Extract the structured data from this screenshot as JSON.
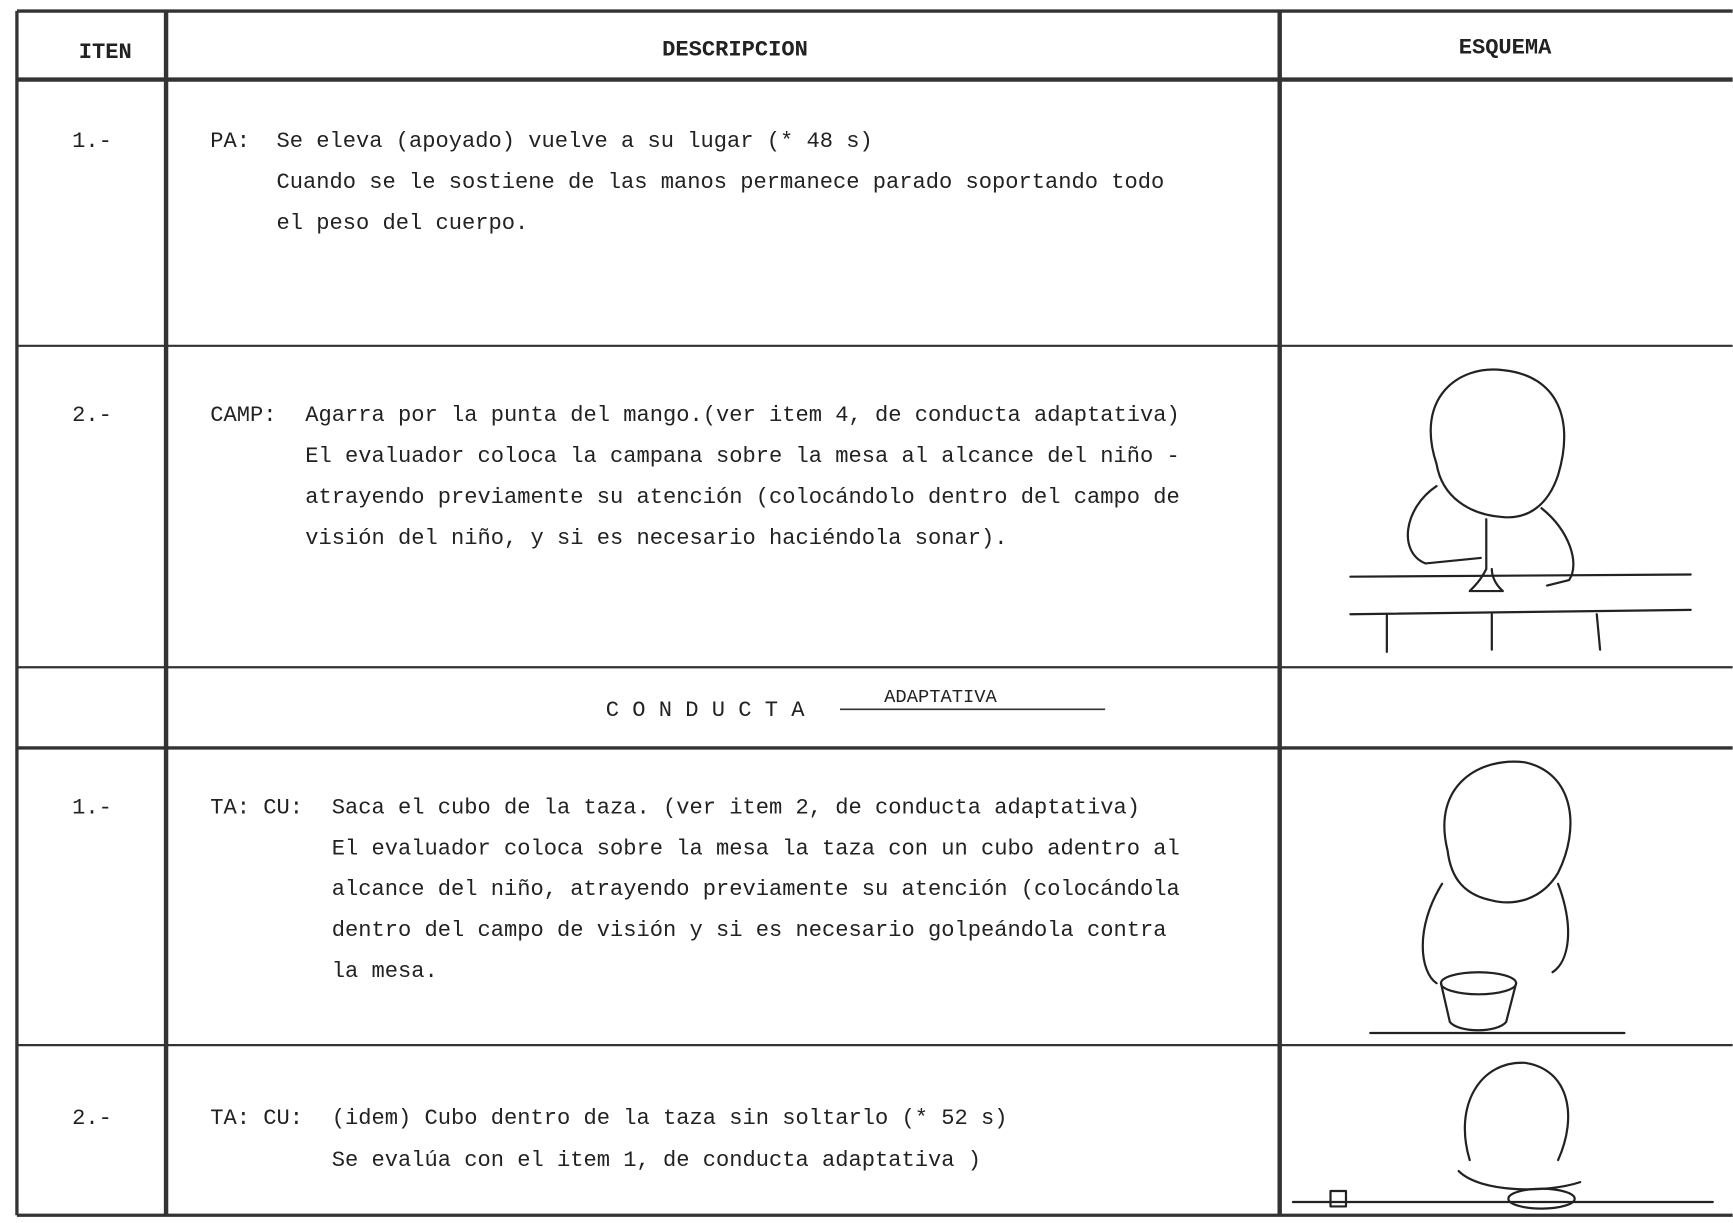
{
  "header": {
    "item": "ITEN",
    "description": "DESCRIPCION",
    "schema": "ESQUEMA"
  },
  "rows": [
    {
      "item": "1.-",
      "code": "PA:",
      "lines": [
        "Se eleva  (apoyado) vuelve a su lugar  (* 48 s)",
        "Cuando se le sostiene de las manos permanece parado soportando todo",
        "el peso del cuerpo."
      ]
    },
    {
      "item": "2.-",
      "code": "CAMP:",
      "lines": [
        "Agarra por la punta del mango.(ver item 4, de conducta adaptativa)",
        "El evaluador coloca la campana sobre la mesa al alcance del niño -",
        "atrayendo previamente su atención (colocándolo dentro del campo de",
        "visión del niño, y si es necesario haciéndola sonar)."
      ]
    }
  ],
  "section": {
    "title": "C O N D U C T A",
    "subtitle": "ADAPTATIVA"
  },
  "section_rows": [
    {
      "item": "1.-",
      "code": "TA: CU:",
      "lines": [
        "Saca el cubo de la taza. (ver item 2, de conducta adaptativa)",
        "El evaluador coloca sobre la mesa la taza con un cubo adentro al",
        "alcance del niño, atrayendo previamente su atención (colocándola",
        "dentro del campo de visión y si es necesario golpeándola contra",
        "la mesa."
      ]
    },
    {
      "item": "2.-",
      "code": "TA: CU:",
      "lines": [
        "(idem)  Cubo dentro de la taza sin soltarlo (* 52 s)",
        "Se evalúa con el item 1, de conducta adaptativa )"
      ]
    }
  ]
}
